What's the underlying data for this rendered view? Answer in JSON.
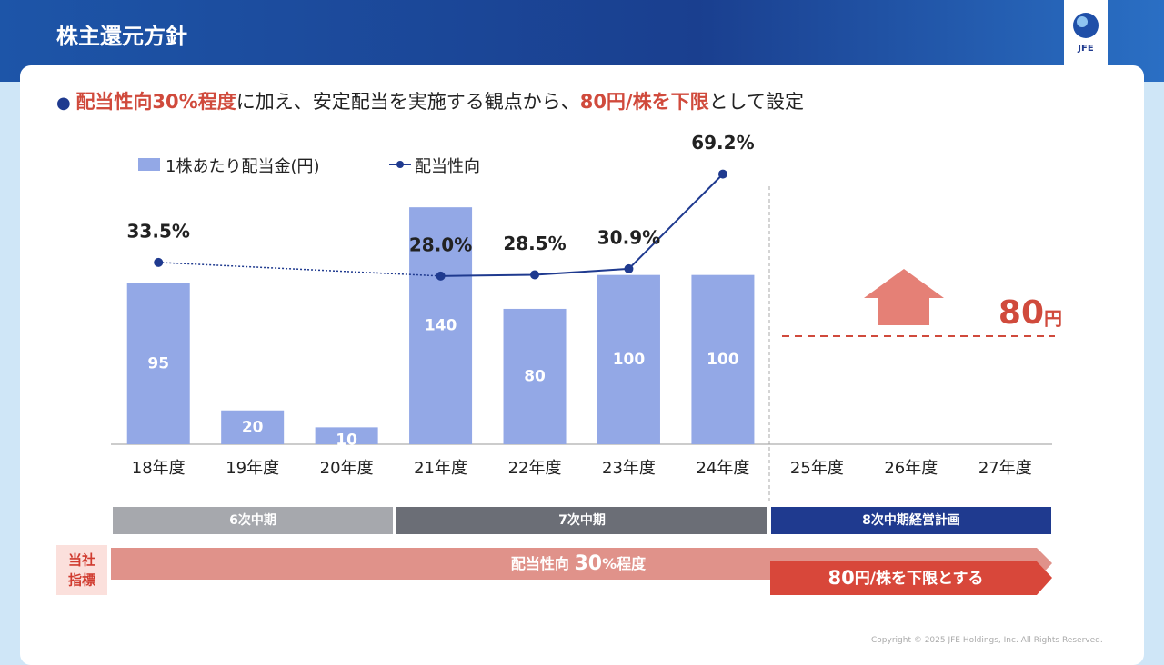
{
  "header": {
    "title": "株主還元方針",
    "logo": "JFE"
  },
  "headline": [
    "配当性向30%程度",
    "に加え、安定配当を実施する観点から、",
    "80円/株を下限",
    "として設定"
  ],
  "chart_data": {
    "type": "bar_line",
    "categories": [
      "18年度",
      "19年度",
      "20年度",
      "21年度",
      "22年度",
      "23年度",
      "24年度",
      "25年度",
      "26年度",
      "27年度"
    ],
    "series": [
      {
        "name": "1株あたり配当金(円)",
        "color": "#93a8e6",
        "type": "bar",
        "values": [
          95,
          20,
          10,
          140,
          80,
          100,
          100,
          null,
          null,
          null
        ]
      },
      {
        "name": "配当性向",
        "color": "#1f3a8f",
        "type": "line",
        "axis": "y2",
        "values": [
          33.5,
          null,
          null,
          28.0,
          28.5,
          30.9,
          69.2,
          null,
          null,
          null
        ],
        "value_labels": [
          "33.5%",
          null,
          null,
          "28.0%",
          "28.5%",
          "30.9%",
          "69.2%",
          null,
          null,
          null
        ],
        "gap_style": "dotted"
      }
    ],
    "ylim": [
      0,
      190
    ],
    "y2lim": [
      -40,
      90
    ],
    "target": {
      "value": "80",
      "unit": "円"
    }
  },
  "phases": [
    "6次中期",
    "7次中期",
    "8次中期経営計画"
  ],
  "indicator": {
    "label": [
      "当社",
      "指標"
    ],
    "policy": [
      "配当性向 ",
      "30",
      "%程度"
    ],
    "floor": [
      "80",
      "円/株を下限とする"
    ]
  },
  "copyright": "Copyright © 2025 JFE Holdings, Inc. All Rights Reserved."
}
